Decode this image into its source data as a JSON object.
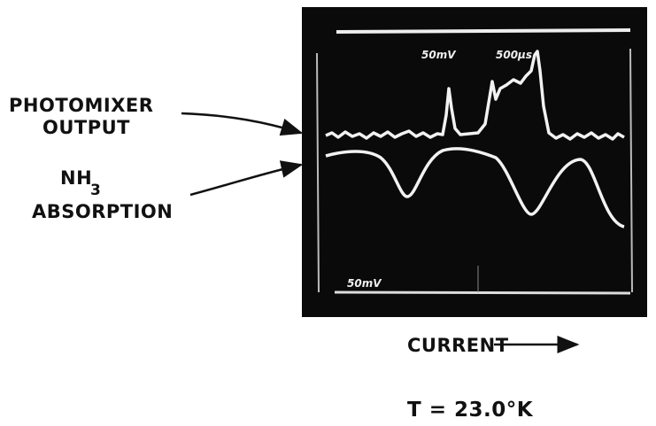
{
  "labels": {
    "photomixer": "PHOTOMIXER",
    "output": "OUTPUT",
    "nh": "NH",
    "nh_subscript": "3",
    "absorption": "ABSORPTION",
    "current": "CURRENT",
    "temperature": "T = 23.0°K"
  },
  "scope": {
    "trace1_scale": "50mV",
    "time_scale": "500μs",
    "trace2_scale": "50mV"
  }
}
